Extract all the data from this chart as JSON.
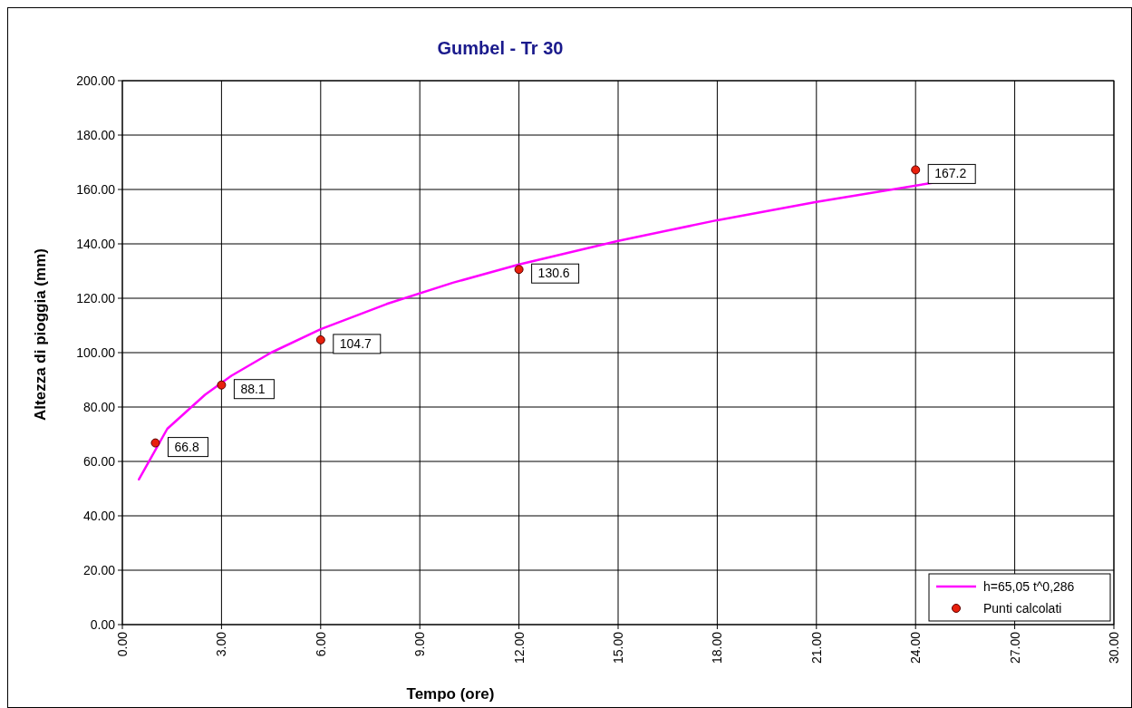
{
  "chart_data": {
    "type": "line",
    "title": "Gumbel - Tr  30",
    "xlabel": "Tempo (ore)",
    "ylabel": "Altezza di pioggia (mm)",
    "xlim": [
      0,
      30
    ],
    "ylim": [
      0,
      200
    ],
    "xticks": [
      {
        "value": 0,
        "label": "0.00"
      },
      {
        "value": 3,
        "label": "3.00"
      },
      {
        "value": 6,
        "label": "6.00"
      },
      {
        "value": 9,
        "label": "9.00"
      },
      {
        "value": 12,
        "label": "12.00"
      },
      {
        "value": 15,
        "label": "15.00"
      },
      {
        "value": 18,
        "label": "18.00"
      },
      {
        "value": 21,
        "label": "21.00"
      },
      {
        "value": 24,
        "label": "24.00"
      },
      {
        "value": 27,
        "label": "27.00"
      },
      {
        "value": 30,
        "label": "30.00"
      }
    ],
    "yticks": [
      {
        "value": 0,
        "label": "0.00"
      },
      {
        "value": 20,
        "label": "20.00"
      },
      {
        "value": 40,
        "label": "40.00"
      },
      {
        "value": 60,
        "label": "60.00"
      },
      {
        "value": 80,
        "label": "80.00"
      },
      {
        "value": 100,
        "label": "100.00"
      },
      {
        "value": 120,
        "label": "120.00"
      },
      {
        "value": 140,
        "label": "140.00"
      },
      {
        "value": 160,
        "label": "160.00"
      },
      {
        "value": 180,
        "label": "180.00"
      },
      {
        "value": 200,
        "label": "200.00"
      }
    ],
    "grid": true,
    "legend": "bottom right",
    "series": [
      {
        "name": "h=65,05 t^0,286",
        "color": "#ff00ff",
        "marker": "none",
        "line_style": "solid",
        "x": [
          0.5,
          1.36,
          2.5,
          3.3,
          4.5,
          6,
          8,
          10,
          12,
          15,
          18,
          21,
          24.5
        ],
        "values": [
          53.4,
          72,
          84.5,
          91.5,
          100,
          108.6,
          117.9,
          125.7,
          132.4,
          141.1,
          148.7,
          155.4,
          162.4
        ]
      },
      {
        "name": "Punti calcolati",
        "type": "scatter",
        "color": "#e8200c",
        "marker": "circle",
        "x": [
          1,
          3,
          6,
          12,
          24
        ],
        "values": [
          66.8,
          88.1,
          104.7,
          130.6,
          167.2
        ],
        "value_labels": [
          "66.8",
          "88.1",
          "104.7",
          "130.6",
          "167.2"
        ]
      }
    ]
  }
}
